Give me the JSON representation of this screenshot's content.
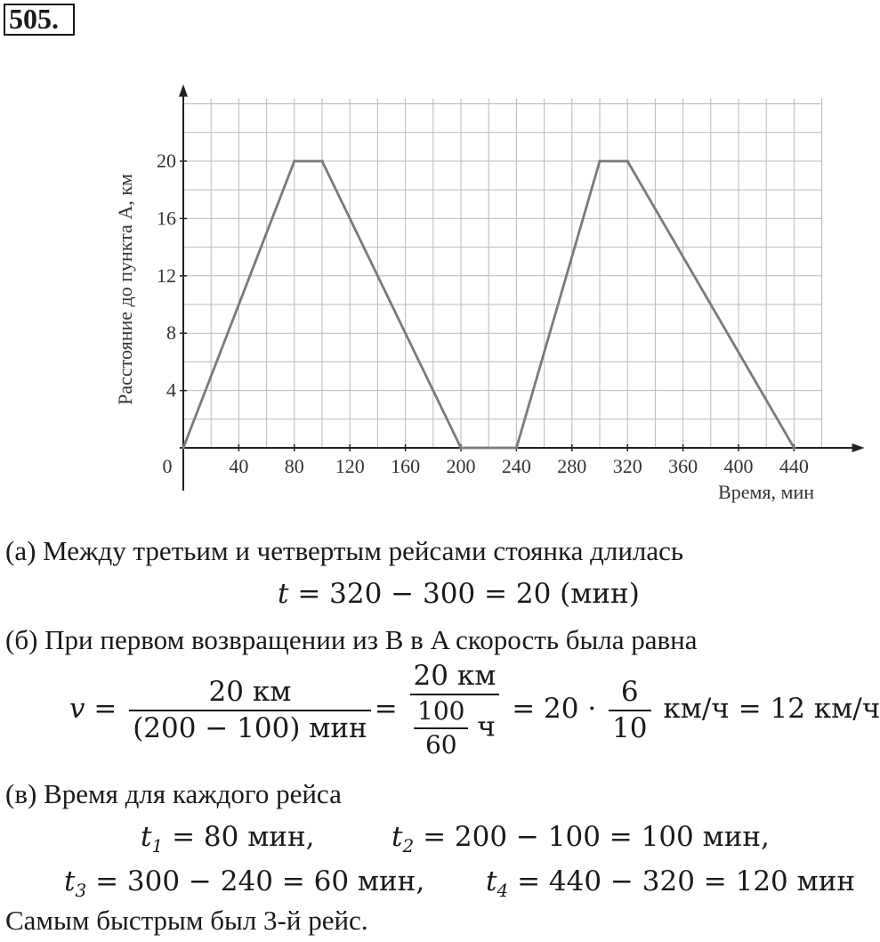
{
  "problem_number": "505.",
  "chart_data": {
    "type": "line",
    "title": "",
    "xlabel": "Время, мин",
    "ylabel": "Расстояние до пункта A, км",
    "x_ticks": [
      "0",
      "40",
      "80",
      "120",
      "160",
      "200",
      "240",
      "280",
      "320",
      "360",
      "400",
      "440"
    ],
    "y_ticks": [
      "4",
      "8",
      "12",
      "16",
      "20"
    ],
    "xlim": [
      0,
      460
    ],
    "ylim": [
      0,
      24
    ],
    "grid": true,
    "series": [
      {
        "x": [
          0,
          80,
          100,
          200,
          240,
          300,
          320,
          440
        ],
        "y": [
          0,
          20,
          20,
          0,
          0,
          20,
          20,
          0
        ]
      }
    ]
  },
  "solution": {
    "a_text": "(а) Между третьим и четвертым рейсами стоянка длилась",
    "a_formula": "= 320 − 300 = 20 (мин)",
    "b_text": "(б) При первом возвращении из B в A скорость была равна",
    "b_f1_num": "20 км",
    "b_f1_den": "(200 − 100) мин",
    "b_f2_num": "20 км",
    "b_f2_den_num": "100",
    "b_f2_den_den": "60",
    "b_f2_unit": "ч",
    "b_mid": "= 20 ·",
    "b_f3_num": "6",
    "b_f3_den": "10",
    "b_tail": "км/ч = 12 км/ч",
    "c_text": "(в) Время для каждого рейса",
    "t1": "= 80 мин,",
    "t2": "= 200 − 100 = 100 мин,",
    "t3": "= 300 − 240 = 60 мин,",
    "t4": "= 440 − 320 = 120 мин",
    "conclusion": "Самым быстрым был 3-й рейс."
  }
}
